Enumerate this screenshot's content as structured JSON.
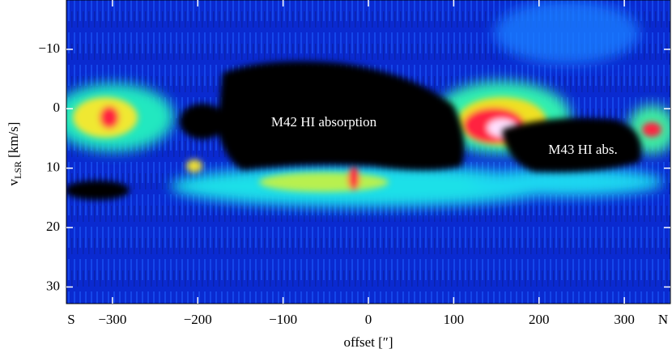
{
  "chart_data": {
    "type": "pv-diagram",
    "xlabel": "offset [″]",
    "ylabel": "v",
    "ylabel_subscript": "LSR",
    "ylabel_unit": "[km/s]",
    "x_end_labels": [
      "S",
      "N"
    ],
    "annotations": [
      "M42 HI absorption",
      "M43 HI abs."
    ],
    "xlim": [
      -354,
      354
    ],
    "xticks": [
      -300,
      -200,
      -100,
      0,
      100,
      200,
      300
    ],
    "ylim": [
      -18.3,
      32.8
    ],
    "y_inverted": true,
    "yticks": [
      -10,
      0,
      10,
      20,
      30
    ]
  }
}
